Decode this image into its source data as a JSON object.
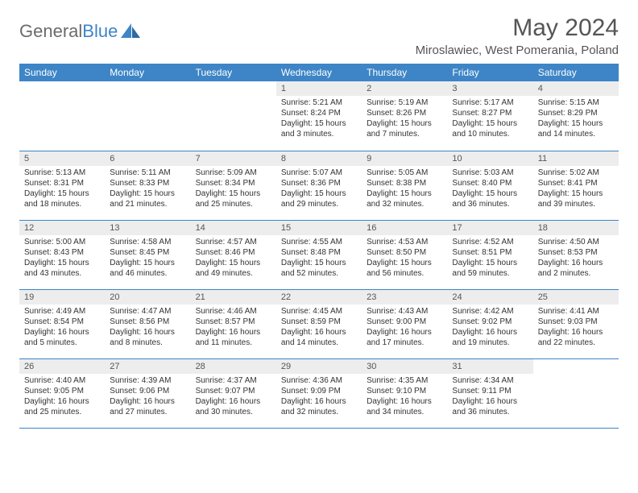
{
  "brand": {
    "name_part1": "General",
    "name_part2": "Blue"
  },
  "title": "May 2024",
  "location": "Miroslawiec, West Pomerania, Poland",
  "colors": {
    "header_bg": "#3d85c6",
    "header_text": "#ffffff",
    "daynum_bg": "#ededed",
    "row_border": "#3d85c6",
    "logo_gray": "#6b6b6b",
    "logo_blue": "#3d85c6"
  },
  "typography": {
    "title_fontsize": 30,
    "location_fontsize": 15,
    "dayheader_fontsize": 12,
    "daynum_fontsize": 11,
    "cell_fontsize": 10
  },
  "days_of_week": [
    "Sunday",
    "Monday",
    "Tuesday",
    "Wednesday",
    "Thursday",
    "Friday",
    "Saturday"
  ],
  "weeks": [
    [
      {
        "n": "",
        "sunrise": "",
        "sunset": "",
        "daylight": ""
      },
      {
        "n": "",
        "sunrise": "",
        "sunset": "",
        "daylight": ""
      },
      {
        "n": "",
        "sunrise": "",
        "sunset": "",
        "daylight": ""
      },
      {
        "n": "1",
        "sunrise": "Sunrise: 5:21 AM",
        "sunset": "Sunset: 8:24 PM",
        "daylight": "Daylight: 15 hours and 3 minutes."
      },
      {
        "n": "2",
        "sunrise": "Sunrise: 5:19 AM",
        "sunset": "Sunset: 8:26 PM",
        "daylight": "Daylight: 15 hours and 7 minutes."
      },
      {
        "n": "3",
        "sunrise": "Sunrise: 5:17 AM",
        "sunset": "Sunset: 8:27 PM",
        "daylight": "Daylight: 15 hours and 10 minutes."
      },
      {
        "n": "4",
        "sunrise": "Sunrise: 5:15 AM",
        "sunset": "Sunset: 8:29 PM",
        "daylight": "Daylight: 15 hours and 14 minutes."
      }
    ],
    [
      {
        "n": "5",
        "sunrise": "Sunrise: 5:13 AM",
        "sunset": "Sunset: 8:31 PM",
        "daylight": "Daylight: 15 hours and 18 minutes."
      },
      {
        "n": "6",
        "sunrise": "Sunrise: 5:11 AM",
        "sunset": "Sunset: 8:33 PM",
        "daylight": "Daylight: 15 hours and 21 minutes."
      },
      {
        "n": "7",
        "sunrise": "Sunrise: 5:09 AM",
        "sunset": "Sunset: 8:34 PM",
        "daylight": "Daylight: 15 hours and 25 minutes."
      },
      {
        "n": "8",
        "sunrise": "Sunrise: 5:07 AM",
        "sunset": "Sunset: 8:36 PM",
        "daylight": "Daylight: 15 hours and 29 minutes."
      },
      {
        "n": "9",
        "sunrise": "Sunrise: 5:05 AM",
        "sunset": "Sunset: 8:38 PM",
        "daylight": "Daylight: 15 hours and 32 minutes."
      },
      {
        "n": "10",
        "sunrise": "Sunrise: 5:03 AM",
        "sunset": "Sunset: 8:40 PM",
        "daylight": "Daylight: 15 hours and 36 minutes."
      },
      {
        "n": "11",
        "sunrise": "Sunrise: 5:02 AM",
        "sunset": "Sunset: 8:41 PM",
        "daylight": "Daylight: 15 hours and 39 minutes."
      }
    ],
    [
      {
        "n": "12",
        "sunrise": "Sunrise: 5:00 AM",
        "sunset": "Sunset: 8:43 PM",
        "daylight": "Daylight: 15 hours and 43 minutes."
      },
      {
        "n": "13",
        "sunrise": "Sunrise: 4:58 AM",
        "sunset": "Sunset: 8:45 PM",
        "daylight": "Daylight: 15 hours and 46 minutes."
      },
      {
        "n": "14",
        "sunrise": "Sunrise: 4:57 AM",
        "sunset": "Sunset: 8:46 PM",
        "daylight": "Daylight: 15 hours and 49 minutes."
      },
      {
        "n": "15",
        "sunrise": "Sunrise: 4:55 AM",
        "sunset": "Sunset: 8:48 PM",
        "daylight": "Daylight: 15 hours and 52 minutes."
      },
      {
        "n": "16",
        "sunrise": "Sunrise: 4:53 AM",
        "sunset": "Sunset: 8:50 PM",
        "daylight": "Daylight: 15 hours and 56 minutes."
      },
      {
        "n": "17",
        "sunrise": "Sunrise: 4:52 AM",
        "sunset": "Sunset: 8:51 PM",
        "daylight": "Daylight: 15 hours and 59 minutes."
      },
      {
        "n": "18",
        "sunrise": "Sunrise: 4:50 AM",
        "sunset": "Sunset: 8:53 PM",
        "daylight": "Daylight: 16 hours and 2 minutes."
      }
    ],
    [
      {
        "n": "19",
        "sunrise": "Sunrise: 4:49 AM",
        "sunset": "Sunset: 8:54 PM",
        "daylight": "Daylight: 16 hours and 5 minutes."
      },
      {
        "n": "20",
        "sunrise": "Sunrise: 4:47 AM",
        "sunset": "Sunset: 8:56 PM",
        "daylight": "Daylight: 16 hours and 8 minutes."
      },
      {
        "n": "21",
        "sunrise": "Sunrise: 4:46 AM",
        "sunset": "Sunset: 8:57 PM",
        "daylight": "Daylight: 16 hours and 11 minutes."
      },
      {
        "n": "22",
        "sunrise": "Sunrise: 4:45 AM",
        "sunset": "Sunset: 8:59 PM",
        "daylight": "Daylight: 16 hours and 14 minutes."
      },
      {
        "n": "23",
        "sunrise": "Sunrise: 4:43 AM",
        "sunset": "Sunset: 9:00 PM",
        "daylight": "Daylight: 16 hours and 17 minutes."
      },
      {
        "n": "24",
        "sunrise": "Sunrise: 4:42 AM",
        "sunset": "Sunset: 9:02 PM",
        "daylight": "Daylight: 16 hours and 19 minutes."
      },
      {
        "n": "25",
        "sunrise": "Sunrise: 4:41 AM",
        "sunset": "Sunset: 9:03 PM",
        "daylight": "Daylight: 16 hours and 22 minutes."
      }
    ],
    [
      {
        "n": "26",
        "sunrise": "Sunrise: 4:40 AM",
        "sunset": "Sunset: 9:05 PM",
        "daylight": "Daylight: 16 hours and 25 minutes."
      },
      {
        "n": "27",
        "sunrise": "Sunrise: 4:39 AM",
        "sunset": "Sunset: 9:06 PM",
        "daylight": "Daylight: 16 hours and 27 minutes."
      },
      {
        "n": "28",
        "sunrise": "Sunrise: 4:37 AM",
        "sunset": "Sunset: 9:07 PM",
        "daylight": "Daylight: 16 hours and 30 minutes."
      },
      {
        "n": "29",
        "sunrise": "Sunrise: 4:36 AM",
        "sunset": "Sunset: 9:09 PM",
        "daylight": "Daylight: 16 hours and 32 minutes."
      },
      {
        "n": "30",
        "sunrise": "Sunrise: 4:35 AM",
        "sunset": "Sunset: 9:10 PM",
        "daylight": "Daylight: 16 hours and 34 minutes."
      },
      {
        "n": "31",
        "sunrise": "Sunrise: 4:34 AM",
        "sunset": "Sunset: 9:11 PM",
        "daylight": "Daylight: 16 hours and 36 minutes."
      },
      {
        "n": "",
        "sunrise": "",
        "sunset": "",
        "daylight": ""
      }
    ]
  ]
}
